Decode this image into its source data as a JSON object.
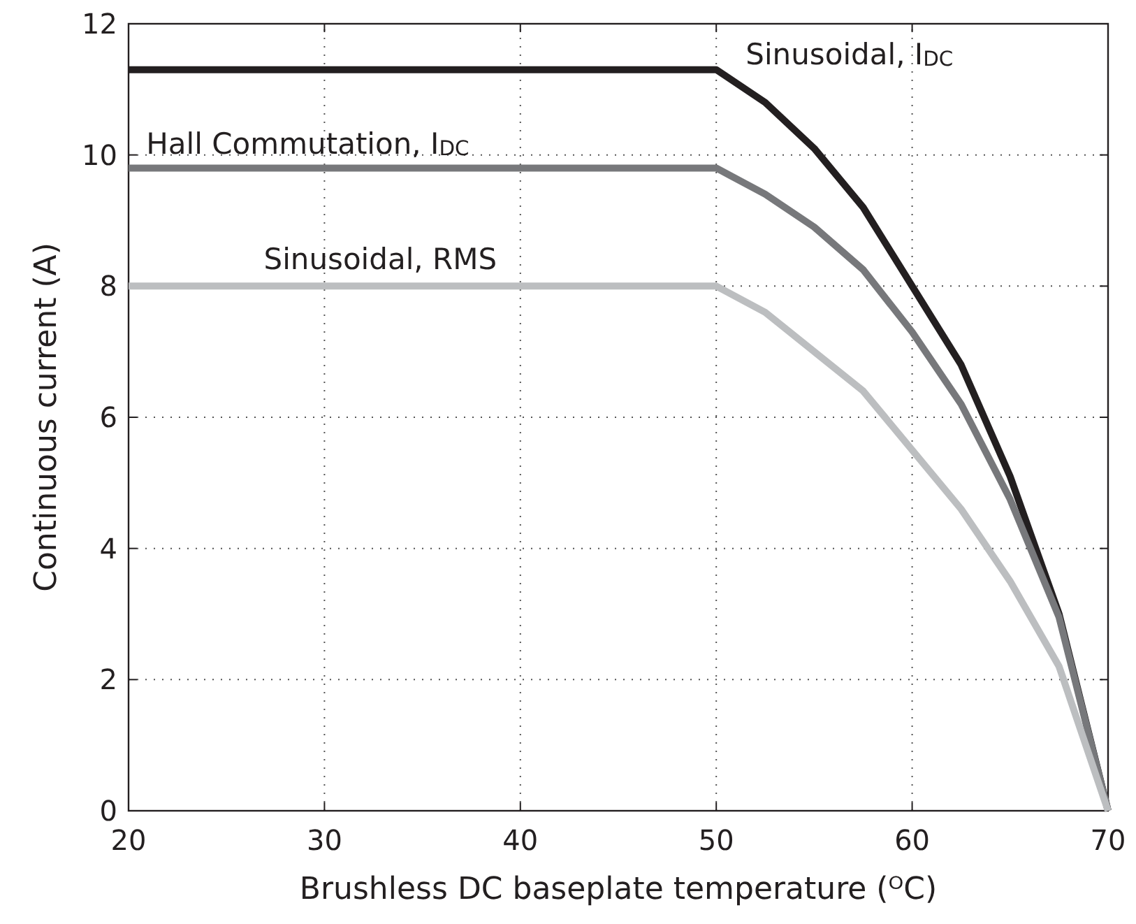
{
  "chart_data": {
    "type": "line",
    "xlabel": "Brushless DC baseplate temperature (ᴼC)",
    "ylabel": "Continuous current (A)",
    "x": [
      20,
      50,
      52.5,
      55,
      57.5,
      60,
      62.5,
      65,
      67.5,
      70
    ],
    "series": [
      {
        "name": "Sinusoidal, I$_{DC}$",
        "color": "#231f20",
        "values": [
          11.3,
          11.3,
          10.8,
          10.1,
          9.2,
          8.0,
          6.8,
          5.1,
          3.0,
          0
        ]
      },
      {
        "name": "Hall Commutation, I$_{DC}$",
        "color": "#77787b",
        "values": [
          9.8,
          9.8,
          9.4,
          8.9,
          8.25,
          7.3,
          6.2,
          4.75,
          2.95,
          0
        ]
      },
      {
        "name": "Sinusoidal, RMS",
        "color": "#bcbec0",
        "values": [
          8,
          8,
          7.6,
          7.0,
          6.4,
          5.5,
          4.6,
          3.5,
          2.2,
          0
        ]
      }
    ],
    "xlim": [
      20,
      70
    ],
    "ylim": [
      0,
      12
    ],
    "xticks": [
      20,
      30,
      40,
      50,
      60,
      70
    ],
    "yticks": [
      0,
      2,
      4,
      6,
      8,
      10,
      12
    ],
    "grid": true,
    "line_style": "solid",
    "marker": "none"
  }
}
